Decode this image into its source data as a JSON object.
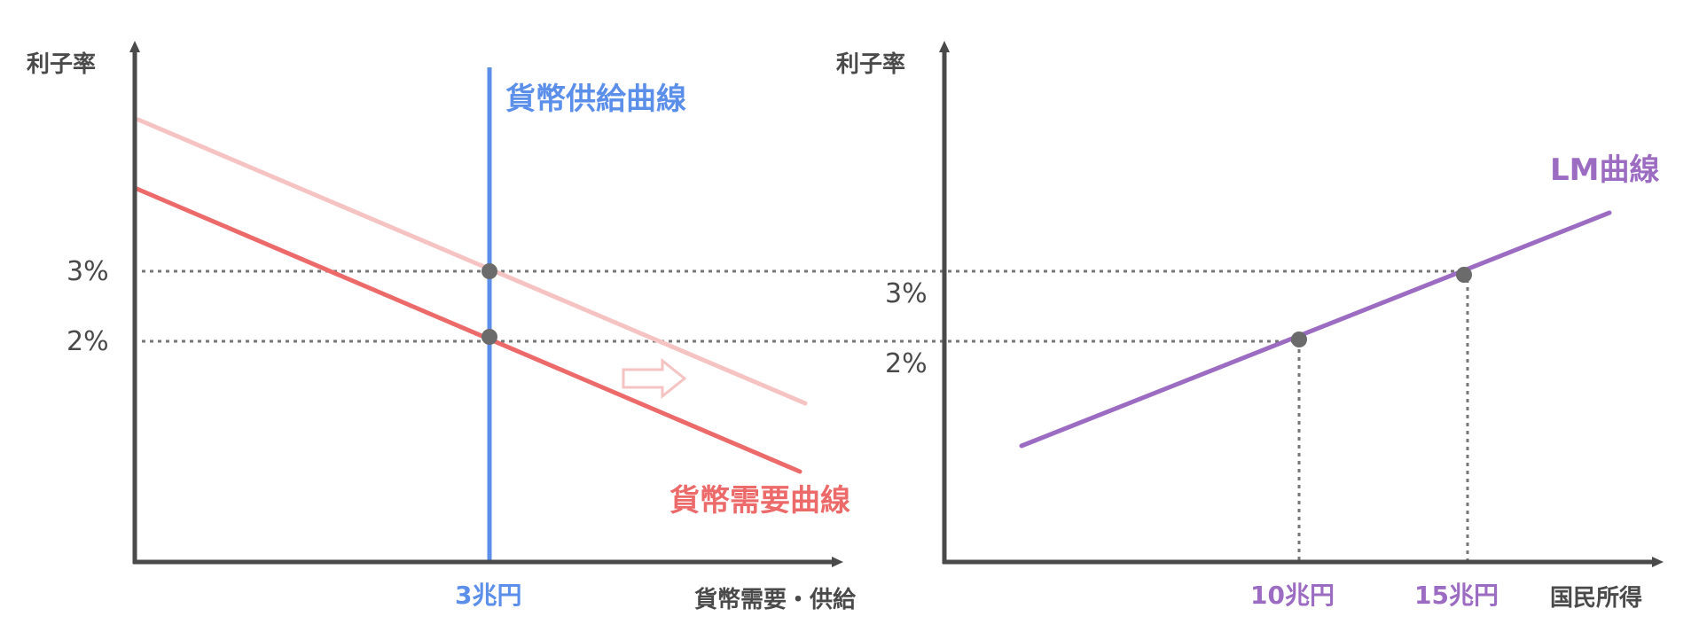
{
  "colors": {
    "axis": "#4a4a4a",
    "guide": "#777777",
    "supply": "#5b8fea",
    "demand": "#ec6a6a",
    "demand_shifted": "#f6c3c3",
    "lm": "#9b6cc2",
    "point": "#6b6b6b"
  },
  "chart_data": [
    {
      "type": "line",
      "title": "",
      "ylabel": "利子率",
      "xlabel": "貨幣需要・供給",
      "x_ticks": [
        "3兆円"
      ],
      "y_ticks": [
        "2%",
        "3%"
      ],
      "series": [
        {
          "name": "貨幣供給曲線",
          "points": [
            {
              "x": "3兆円",
              "y": null,
              "note": "vertical line"
            }
          ]
        },
        {
          "name": "貨幣需要曲線",
          "points": [
            {
              "x": "3兆円",
              "y": "2%"
            }
          ]
        },
        {
          "name": "",
          "points": [
            {
              "x": "3兆円",
              "y": "3%"
            }
          ]
        }
      ],
      "annotations": [
        "arrow-right"
      ]
    },
    {
      "type": "line",
      "title": "",
      "ylabel": "利子率",
      "xlabel": "国民所得",
      "x_ticks": [
        "10兆円",
        "15兆円"
      ],
      "y_ticks": [
        "2%",
        "3%"
      ],
      "series": [
        {
          "name": "LM曲線",
          "points": [
            {
              "x": "10兆円",
              "y": "2%"
            },
            {
              "x": "15兆円",
              "y": "3%"
            }
          ]
        }
      ]
    }
  ],
  "left": {
    "ylabel": "利子率",
    "xlabel": "貨幣需要・供給",
    "ytick_3": "3%",
    "ytick_2": "2%",
    "xtick": "3兆円",
    "supply_label": "貨幣供給曲線",
    "demand_label": "貨幣需要曲線"
  },
  "right": {
    "ylabel": "利子率",
    "xlabel": "国民所得",
    "ytick_3": "3%",
    "ytick_2": "2%",
    "xtick_10": "10兆円",
    "xtick_15": "15兆円",
    "lm_label": "LM曲線"
  }
}
